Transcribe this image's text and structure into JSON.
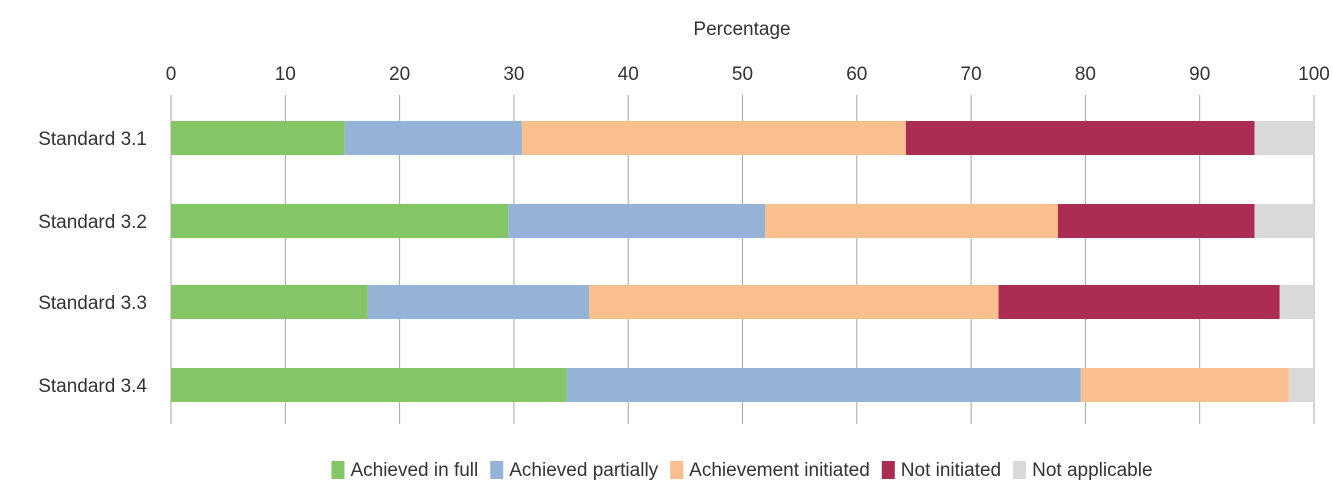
{
  "chart_data": {
    "type": "bar",
    "orientation": "horizontal",
    "stacked": true,
    "title": "",
    "xlabel": "Percentage",
    "ylabel": "",
    "xlim": [
      0,
      100
    ],
    "x_ticks": [
      "0",
      "10",
      "20",
      "30",
      "40",
      "50",
      "60",
      "70",
      "80",
      "90",
      "100"
    ],
    "x_axis_position": "top",
    "grid": true,
    "legend_position": "bottom",
    "categories": [
      "Standard 3.1",
      "Standard 3.2",
      "Standard 3.3",
      "Standard 3.4"
    ],
    "series": [
      {
        "name": "Achieved in full",
        "color": "#84c566",
        "values": [
          15.2,
          29.5,
          17.2,
          34.6
        ]
      },
      {
        "name": "Achieved partially",
        "color": "#95b3d7",
        "values": [
          15.5,
          22.5,
          19.4,
          45.0
        ]
      },
      {
        "name": "Achievement initiated",
        "color": "#f9bf8f",
        "values": [
          33.6,
          25.6,
          35.8,
          18.2
        ]
      },
      {
        "name": "Not initiated",
        "color": "#ab2d54",
        "values": [
          30.5,
          17.2,
          24.6,
          0
        ]
      },
      {
        "name": "Not applicable",
        "color": "#d9d9d9",
        "values": [
          5.2,
          5.2,
          3.0,
          2.2
        ]
      }
    ]
  }
}
